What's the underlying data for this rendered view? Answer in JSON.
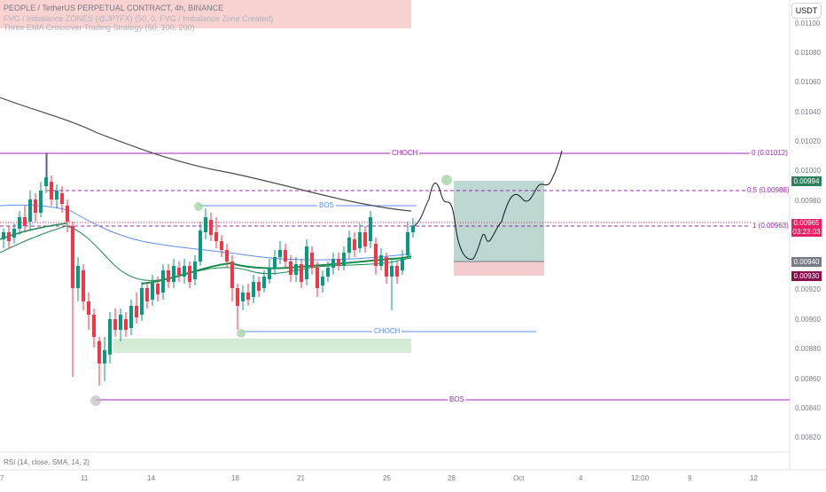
{
  "legend": {
    "line1": "PEOPLE / TetherUS PERPETUAL CONTRACT, 4h, BINANCE",
    "line2": "FVG / Imbalance ZONES (@JP7FX) (50, 0, FVG / Imbalance Zone Created)",
    "line3": "Three EMA Crossover Trading Strategy (50, 100, 200)"
  },
  "price_scale": {
    "currency": "USDT",
    "ticks": [
      "0.01100",
      "0.01080",
      "0.01060",
      "0.01040",
      "0.01020",
      "0.01000",
      "0.00980",
      "0.00960",
      "0.00940",
      "0.00920",
      "0.00900",
      "0.00880",
      "0.00860",
      "0.00840",
      "0.00820"
    ],
    "labels": [
      {
        "value": "0.00994",
        "color": "#2e7d5b"
      },
      {
        "value": "0.00965",
        "sub": "03:23:03",
        "color": "#e91e63"
      },
      {
        "value": "0.00940",
        "color": "#787b86"
      },
      {
        "value": "0.00930",
        "color": "#880e4f"
      }
    ]
  },
  "time_axis": [
    "7",
    "11",
    "14",
    "18",
    "21",
    "25",
    "28",
    "Oct",
    "4",
    "12:00",
    "9",
    "12"
  ],
  "annotations": {
    "choch_top": "CHOCH",
    "fib_0": "0 (0.01012)",
    "fib_05": "0.5 (0.00988)",
    "fib_1": "1 (0.00963)",
    "bos_upper": "BOS",
    "choch_lower": "CHOCH",
    "bos_lower": "BOS"
  },
  "indicator": {
    "rsi": "RSI (14, close, SMA, 14, 2)"
  },
  "colors": {
    "up": "#089981",
    "down": "#f23645",
    "ema50": "#1b8a4b",
    "ema100": "#5b8def",
    "ema200": "#4a4a4a",
    "purple": "#9c27b0",
    "blue": "#2962ff"
  }
}
